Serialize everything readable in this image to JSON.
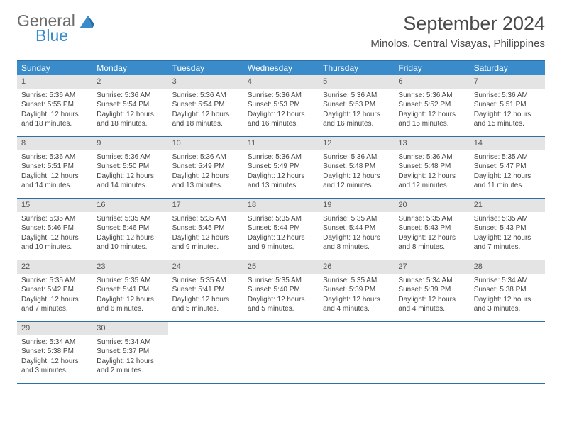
{
  "colors": {
    "header_bar": "#3a8bc9",
    "row_border": "#2f6fa3",
    "daynum_bg": "#e4e4e4",
    "logo_gray": "#6b6b6b",
    "logo_blue": "#3a8bc9",
    "text": "#444444",
    "background": "#ffffff"
  },
  "logo": {
    "line1": "General",
    "line2": "Blue"
  },
  "title": "September 2024",
  "location": "Minolos, Central Visayas, Philippines",
  "dow": [
    "Sunday",
    "Monday",
    "Tuesday",
    "Wednesday",
    "Thursday",
    "Friday",
    "Saturday"
  ],
  "labels": {
    "sunrise": "Sunrise:",
    "sunset": "Sunset:",
    "daylight": "Daylight:"
  },
  "weeks": [
    [
      {
        "n": 1,
        "sr": "5:36 AM",
        "ss": "5:55 PM",
        "dl": "12 hours and 18 minutes."
      },
      {
        "n": 2,
        "sr": "5:36 AM",
        "ss": "5:54 PM",
        "dl": "12 hours and 18 minutes."
      },
      {
        "n": 3,
        "sr": "5:36 AM",
        "ss": "5:54 PM",
        "dl": "12 hours and 18 minutes."
      },
      {
        "n": 4,
        "sr": "5:36 AM",
        "ss": "5:53 PM",
        "dl": "12 hours and 16 minutes."
      },
      {
        "n": 5,
        "sr": "5:36 AM",
        "ss": "5:53 PM",
        "dl": "12 hours and 16 minutes."
      },
      {
        "n": 6,
        "sr": "5:36 AM",
        "ss": "5:52 PM",
        "dl": "12 hours and 15 minutes."
      },
      {
        "n": 7,
        "sr": "5:36 AM",
        "ss": "5:51 PM",
        "dl": "12 hours and 15 minutes."
      }
    ],
    [
      {
        "n": 8,
        "sr": "5:36 AM",
        "ss": "5:51 PM",
        "dl": "12 hours and 14 minutes."
      },
      {
        "n": 9,
        "sr": "5:36 AM",
        "ss": "5:50 PM",
        "dl": "12 hours and 14 minutes."
      },
      {
        "n": 10,
        "sr": "5:36 AM",
        "ss": "5:49 PM",
        "dl": "12 hours and 13 minutes."
      },
      {
        "n": 11,
        "sr": "5:36 AM",
        "ss": "5:49 PM",
        "dl": "12 hours and 13 minutes."
      },
      {
        "n": 12,
        "sr": "5:36 AM",
        "ss": "5:48 PM",
        "dl": "12 hours and 12 minutes."
      },
      {
        "n": 13,
        "sr": "5:36 AM",
        "ss": "5:48 PM",
        "dl": "12 hours and 12 minutes."
      },
      {
        "n": 14,
        "sr": "5:35 AM",
        "ss": "5:47 PM",
        "dl": "12 hours and 11 minutes."
      }
    ],
    [
      {
        "n": 15,
        "sr": "5:35 AM",
        "ss": "5:46 PM",
        "dl": "12 hours and 10 minutes."
      },
      {
        "n": 16,
        "sr": "5:35 AM",
        "ss": "5:46 PM",
        "dl": "12 hours and 10 minutes."
      },
      {
        "n": 17,
        "sr": "5:35 AM",
        "ss": "5:45 PM",
        "dl": "12 hours and 9 minutes."
      },
      {
        "n": 18,
        "sr": "5:35 AM",
        "ss": "5:44 PM",
        "dl": "12 hours and 9 minutes."
      },
      {
        "n": 19,
        "sr": "5:35 AM",
        "ss": "5:44 PM",
        "dl": "12 hours and 8 minutes."
      },
      {
        "n": 20,
        "sr": "5:35 AM",
        "ss": "5:43 PM",
        "dl": "12 hours and 8 minutes."
      },
      {
        "n": 21,
        "sr": "5:35 AM",
        "ss": "5:43 PM",
        "dl": "12 hours and 7 minutes."
      }
    ],
    [
      {
        "n": 22,
        "sr": "5:35 AM",
        "ss": "5:42 PM",
        "dl": "12 hours and 7 minutes."
      },
      {
        "n": 23,
        "sr": "5:35 AM",
        "ss": "5:41 PM",
        "dl": "12 hours and 6 minutes."
      },
      {
        "n": 24,
        "sr": "5:35 AM",
        "ss": "5:41 PM",
        "dl": "12 hours and 5 minutes."
      },
      {
        "n": 25,
        "sr": "5:35 AM",
        "ss": "5:40 PM",
        "dl": "12 hours and 5 minutes."
      },
      {
        "n": 26,
        "sr": "5:35 AM",
        "ss": "5:39 PM",
        "dl": "12 hours and 4 minutes."
      },
      {
        "n": 27,
        "sr": "5:34 AM",
        "ss": "5:39 PM",
        "dl": "12 hours and 4 minutes."
      },
      {
        "n": 28,
        "sr": "5:34 AM",
        "ss": "5:38 PM",
        "dl": "12 hours and 3 minutes."
      }
    ],
    [
      {
        "n": 29,
        "sr": "5:34 AM",
        "ss": "5:38 PM",
        "dl": "12 hours and 3 minutes."
      },
      {
        "n": 30,
        "sr": "5:34 AM",
        "ss": "5:37 PM",
        "dl": "12 hours and 2 minutes."
      },
      null,
      null,
      null,
      null,
      null
    ]
  ]
}
